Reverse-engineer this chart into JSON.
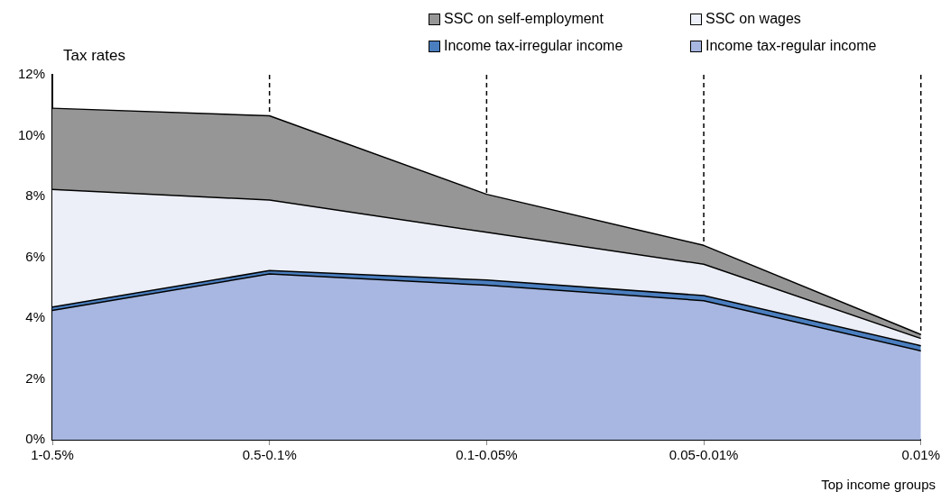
{
  "chart_data": {
    "type": "area",
    "stacked": true,
    "ylabel": "Tax rates",
    "xlabel": "Top income groups",
    "categories": [
      "1-0.5%",
      "0.5-0.1%",
      "0.1-0.05%",
      "0.05-0.01%",
      "0.01%"
    ],
    "series": [
      {
        "name": "Income tax-regular income",
        "color": "#a7b7e1",
        "values": [
          4.25,
          5.45,
          5.08,
          4.57,
          2.92
        ]
      },
      {
        "name": "Income tax-irregular income",
        "color": "#4a7ebf",
        "values": [
          0.11,
          0.11,
          0.17,
          0.17,
          0.17
        ]
      },
      {
        "name": "SSC on wages",
        "color": "#eceff7",
        "values": [
          3.87,
          2.32,
          1.57,
          1.03,
          0.24
        ]
      },
      {
        "name": "SSC on self-employment",
        "color": "#969696",
        "values": [
          2.67,
          2.77,
          1.25,
          0.62,
          0.13
        ]
      }
    ],
    "ylim": [
      0,
      12
    ],
    "yticks": [
      {
        "value": 0,
        "label": "0%"
      },
      {
        "value": 2,
        "label": "2%"
      },
      {
        "value": 4,
        "label": "4%"
      },
      {
        "value": 6,
        "label": "6%"
      },
      {
        "value": 8,
        "label": "8%"
      },
      {
        "value": 10,
        "label": "10%"
      },
      {
        "value": 12,
        "label": "12%"
      }
    ],
    "ref_lines": [
      {
        "axis": "x",
        "value": "0.5-0.1%",
        "line_style": "dashed"
      },
      {
        "axis": "x",
        "value": "0.1-0.05%",
        "line_style": "dashed"
      },
      {
        "axis": "x",
        "value": "0.05-0.01%",
        "line_style": "dashed"
      },
      {
        "axis": "x",
        "value": "0.01%",
        "line_style": "dashed"
      }
    ],
    "grid": false,
    "legend": "top right"
  }
}
